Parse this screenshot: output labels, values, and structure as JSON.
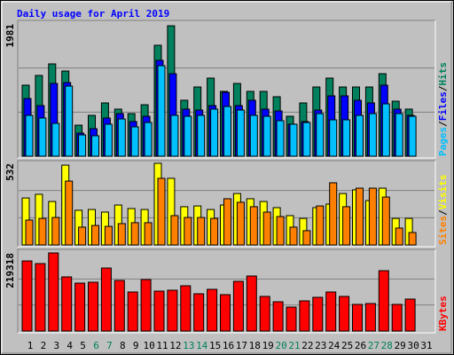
{
  "title": "Daily usage for April 2019",
  "legend_separator": "/",
  "chart_data": [
    {
      "type": "bar",
      "ylim": [
        0,
        1981
      ],
      "yticks": [
        1981
      ],
      "series": [
        {
          "name": "Hits",
          "color": "#00805c",
          "values": [
            1064,
            1210,
            1383,
            1276,
            465,
            612,
            798,
            705,
            638,
            771,
            1662,
            1954,
            838,
            1037,
            1170,
            971,
            1090,
            971,
            971,
            891,
            598,
            798,
            1037,
            1170,
            1037,
            1037,
            1037,
            1236,
            824,
            705,
            null
          ]
        },
        {
          "name": "Files",
          "color": "#0000ff",
          "values": [
            864,
            758,
            1090,
            1103,
            346,
            412,
            572,
            638,
            519,
            598,
            1436,
            1236,
            705,
            691,
            758,
            957,
            758,
            838,
            705,
            678,
            479,
            519,
            691,
            904,
            904,
            838,
            798,
            1064,
            705,
            612,
            null
          ]
        },
        {
          "name": "Pages",
          "color": "#00c0ff",
          "values": [
            612,
            572,
            492,
            1050,
            319,
            306,
            479,
            558,
            439,
            505,
            1356,
            612,
            598,
            612,
            705,
            745,
            691,
            612,
            598,
            532,
            479,
            505,
            638,
            545,
            545,
            612,
            638,
            784,
            638,
            598,
            null
          ]
        }
      ]
    },
    {
      "type": "bar",
      "ylim": [
        0,
        532
      ],
      "yticks": [
        532
      ],
      "series": [
        {
          "name": "Visits",
          "color": "#ffff00",
          "values": [
            306,
            330,
            283,
            520,
            226,
            231,
            214,
            260,
            237,
            231,
            532,
            434,
            249,
            254,
            231,
            260,
            335,
            301,
            283,
            243,
            191,
            173,
            243,
            266,
            335,
            359,
            289,
            370,
            173,
            173,
            null
          ]
        },
        {
          "name": "Sites",
          "color": "#ff8000",
          "values": [
            162,
            173,
            179,
            416,
            116,
            127,
            121,
            139,
            145,
            145,
            434,
            191,
            179,
            179,
            173,
            301,
            278,
            249,
            214,
            185,
            116,
            93,
            254,
            405,
            249,
            370,
            370,
            312,
            110,
            81,
            null
          ]
        }
      ]
    },
    {
      "type": "bar",
      "ylim": [
        0,
        219318
      ],
      "yticks": [
        219318
      ],
      "categories": [
        "1",
        "2",
        "3",
        "4",
        "5",
        "6",
        "7",
        "8",
        "9",
        "10",
        "11",
        "12",
        "13",
        "14",
        "15",
        "16",
        "17",
        "18",
        "19",
        "20",
        "21",
        "22",
        "23",
        "24",
        "25",
        "26",
        "27",
        "28",
        "29",
        "30",
        "31"
      ],
      "category_colors": [
        "#000000",
        "#000000",
        "#000000",
        "#000000",
        "#000000",
        "#00805c",
        "#00805c",
        "#000000",
        "#000000",
        "#000000",
        "#000000",
        "#000000",
        "#00805c",
        "#00805c",
        "#000000",
        "#000000",
        "#000000",
        "#000000",
        "#000000",
        "#00805c",
        "#00805c",
        "#000000",
        "#000000",
        "#000000",
        "#000000",
        "#000000",
        "#00805c",
        "#00805c",
        "#000000",
        "#000000",
        "#000000"
      ],
      "series": [
        {
          "name": "KBytes",
          "color": "#ff0000",
          "values": [
            196890,
            189410,
            219318,
            152027,
            134581,
            137073,
            176950,
            142058,
            109659,
            144550,
            112151,
            114644,
            127105,
            104675,
            117136,
            102182,
            139566,
            154520,
            97198,
            82244,
            67290,
            84736,
            94705,
            109659,
            97198,
            74767,
            77259,
            169473,
            74767,
            89721,
            null
          ]
        }
      ]
    }
  ]
}
